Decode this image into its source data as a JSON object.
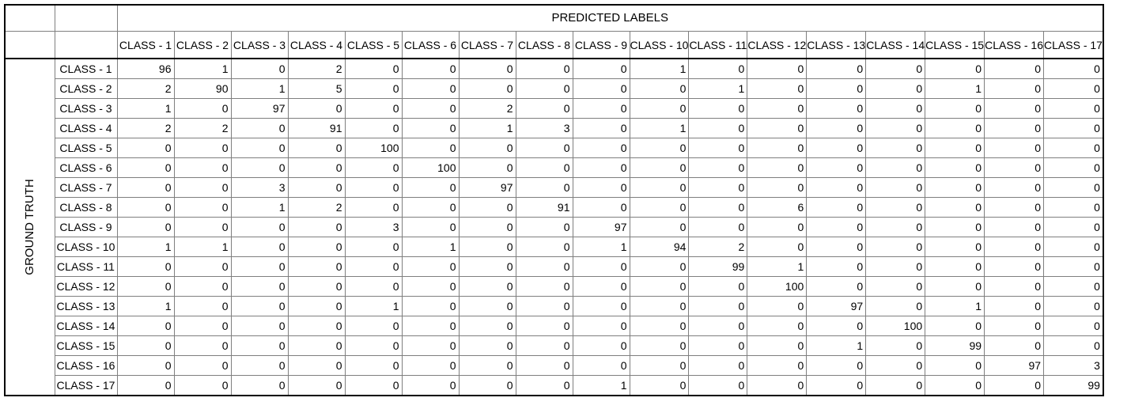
{
  "header": {
    "predicted_label": "PREDICTED LABELS",
    "ground_truth_label": "GROUND TRUTH"
  },
  "columns": [
    "CLASS - 1",
    "CLASS - 2",
    "CLASS - 3",
    "CLASS - 4",
    "CLASS - 5",
    "CLASS - 6",
    "CLASS - 7",
    "CLASS - 8",
    "CLASS - 9",
    "CLASS - 10",
    "CLASS - 11",
    "CLASS - 12",
    "CLASS - 13",
    "CLASS - 14",
    "CLASS - 15",
    "CLASS - 16",
    "CLASS - 17"
  ],
  "rows": [
    {
      "label": "CLASS - 1",
      "values": [
        96,
        1,
        0,
        2,
        0,
        0,
        0,
        0,
        0,
        1,
        0,
        0,
        0,
        0,
        0,
        0,
        0
      ]
    },
    {
      "label": "CLASS - 2",
      "values": [
        2,
        90,
        1,
        5,
        0,
        0,
        0,
        0,
        0,
        0,
        1,
        0,
        0,
        0,
        1,
        0,
        0
      ]
    },
    {
      "label": "CLASS - 3",
      "values": [
        1,
        0,
        97,
        0,
        0,
        0,
        2,
        0,
        0,
        0,
        0,
        0,
        0,
        0,
        0,
        0,
        0
      ]
    },
    {
      "label": "CLASS - 4",
      "values": [
        2,
        2,
        0,
        91,
        0,
        0,
        1,
        3,
        0,
        1,
        0,
        0,
        0,
        0,
        0,
        0,
        0
      ]
    },
    {
      "label": "CLASS - 5",
      "values": [
        0,
        0,
        0,
        0,
        100,
        0,
        0,
        0,
        0,
        0,
        0,
        0,
        0,
        0,
        0,
        0,
        0
      ]
    },
    {
      "label": "CLASS - 6",
      "values": [
        0,
        0,
        0,
        0,
        0,
        100,
        0,
        0,
        0,
        0,
        0,
        0,
        0,
        0,
        0,
        0,
        0
      ]
    },
    {
      "label": "CLASS - 7",
      "values": [
        0,
        0,
        3,
        0,
        0,
        0,
        97,
        0,
        0,
        0,
        0,
        0,
        0,
        0,
        0,
        0,
        0
      ]
    },
    {
      "label": "CLASS - 8",
      "values": [
        0,
        0,
        1,
        2,
        0,
        0,
        0,
        91,
        0,
        0,
        0,
        6,
        0,
        0,
        0,
        0,
        0
      ]
    },
    {
      "label": "CLASS - 9",
      "values": [
        0,
        0,
        0,
        0,
        3,
        0,
        0,
        0,
        97,
        0,
        0,
        0,
        0,
        0,
        0,
        0,
        0
      ]
    },
    {
      "label": "CLASS - 10",
      "values": [
        1,
        1,
        0,
        0,
        0,
        1,
        0,
        0,
        1,
        94,
        2,
        0,
        0,
        0,
        0,
        0,
        0
      ]
    },
    {
      "label": "CLASS - 11",
      "values": [
        0,
        0,
        0,
        0,
        0,
        0,
        0,
        0,
        0,
        0,
        99,
        1,
        0,
        0,
        0,
        0,
        0
      ]
    },
    {
      "label": "CLASS - 12",
      "values": [
        0,
        0,
        0,
        0,
        0,
        0,
        0,
        0,
        0,
        0,
        0,
        100,
        0,
        0,
        0,
        0,
        0
      ]
    },
    {
      "label": "CLASS - 13",
      "values": [
        1,
        0,
        0,
        0,
        1,
        0,
        0,
        0,
        0,
        0,
        0,
        0,
        97,
        0,
        1,
        0,
        0
      ]
    },
    {
      "label": "CLASS - 14",
      "values": [
        0,
        0,
        0,
        0,
        0,
        0,
        0,
        0,
        0,
        0,
        0,
        0,
        0,
        100,
        0,
        0,
        0
      ]
    },
    {
      "label": "CLASS - 15",
      "values": [
        0,
        0,
        0,
        0,
        0,
        0,
        0,
        0,
        0,
        0,
        0,
        0,
        1,
        0,
        99,
        0,
        0
      ]
    },
    {
      "label": "CLASS - 16",
      "values": [
        0,
        0,
        0,
        0,
        0,
        0,
        0,
        0,
        0,
        0,
        0,
        0,
        0,
        0,
        0,
        97,
        3
      ]
    },
    {
      "label": "CLASS - 17",
      "values": [
        0,
        0,
        0,
        0,
        0,
        0,
        0,
        0,
        1,
        0,
        0,
        0,
        0,
        0,
        0,
        0,
        99
      ]
    }
  ]
}
